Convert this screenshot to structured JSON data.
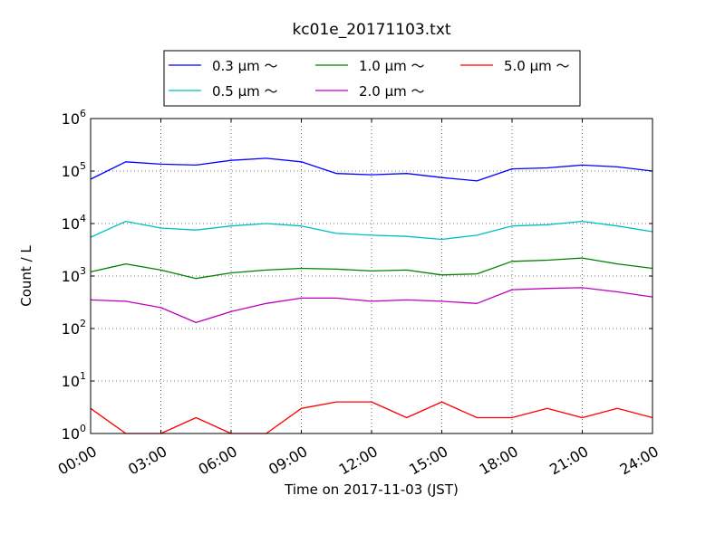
{
  "chart_data": {
    "type": "line",
    "title": "kc01e_20171103.txt",
    "xlabel": "Time on 2017-11-03 (JST)",
    "ylabel": "Count / L",
    "x_ticks": [
      "00:00",
      "03:00",
      "06:00",
      "09:00",
      "12:00",
      "15:00",
      "18:00",
      "21:00",
      "24:00"
    ],
    "y_scale": "log",
    "ylim": [
      1,
      1000000
    ],
    "y_ticks": [
      {
        "base": "10",
        "exp": "0"
      },
      {
        "base": "10",
        "exp": "1"
      },
      {
        "base": "10",
        "exp": "2"
      },
      {
        "base": "10",
        "exp": "3"
      },
      {
        "base": "10",
        "exp": "4"
      },
      {
        "base": "10",
        "exp": "5"
      },
      {
        "base": "10",
        "exp": "6"
      }
    ],
    "grid": true,
    "legend_position": "top-center",
    "x_hours": [
      0,
      1.5,
      3,
      4.5,
      6,
      7.5,
      9,
      10.5,
      12,
      13.5,
      15,
      16.5,
      18,
      19.5,
      21,
      22.5,
      24
    ],
    "series": [
      {
        "name": "0.3 μm ～",
        "color": "#0000ff",
        "values": [
          70000,
          150000,
          135000,
          130000,
          160000,
          175000,
          150000,
          90000,
          85000,
          90000,
          75000,
          65000,
          110000,
          115000,
          130000,
          120000,
          100000
        ]
      },
      {
        "name": "0.5 μm ～",
        "color": "#00bfbf",
        "values": [
          5500,
          11000,
          8200,
          7500,
          9000,
          10000,
          9000,
          6500,
          6000,
          5700,
          5000,
          6000,
          9000,
          9500,
          11000,
          9000,
          7000
        ]
      },
      {
        "name": "1.0 μm ～",
        "color": "#008000",
        "values": [
          1200,
          1700,
          1300,
          900,
          1150,
          1300,
          1400,
          1350,
          1250,
          1300,
          1050,
          1100,
          1900,
          2000,
          2200,
          1700,
          1400
        ]
      },
      {
        "name": "2.0 μm ～",
        "color": "#bf00bf",
        "values": [
          350,
          330,
          250,
          130,
          210,
          300,
          380,
          380,
          330,
          350,
          330,
          300,
          550,
          580,
          600,
          500,
          400
        ]
      },
      {
        "name": "5.0 μm ～",
        "color": "#ff0000",
        "values": [
          3,
          1,
          1,
          2,
          1,
          1,
          3,
          4,
          4,
          2,
          4,
          2,
          2,
          3,
          2,
          3,
          2
        ]
      }
    ]
  }
}
